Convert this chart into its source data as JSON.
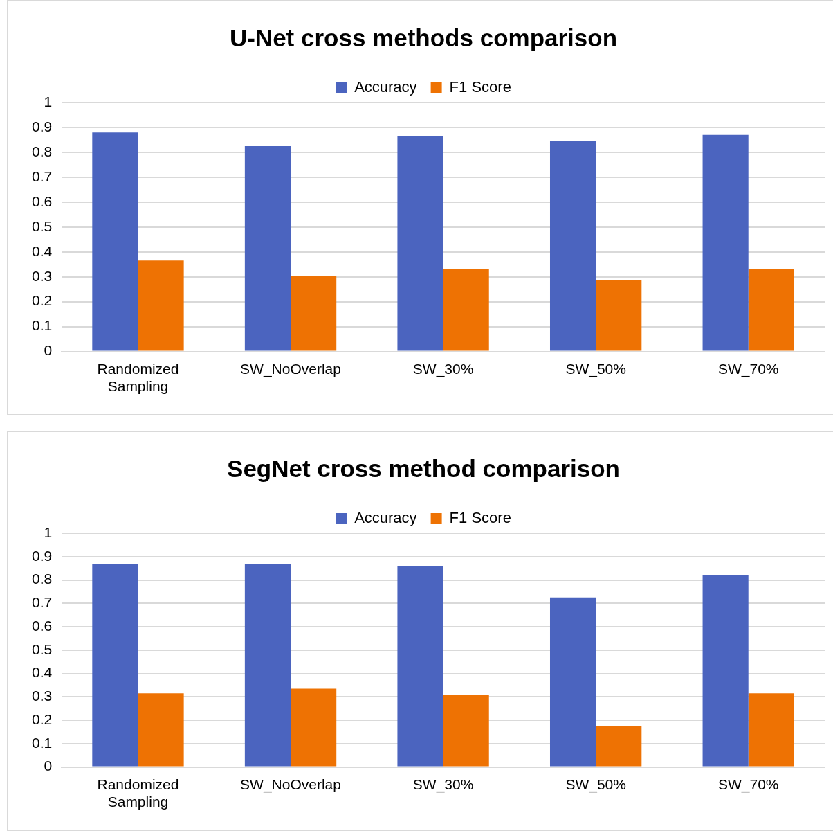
{
  "chart_data": [
    {
      "type": "bar",
      "title": "U-Net cross methods comparison",
      "categories": [
        "Randomized Sampling",
        "SW_NoOverlap",
        "SW_30%",
        "SW_50%",
        "SW_70%"
      ],
      "series": [
        {
          "name": "Accuracy",
          "color": "#4b64bf",
          "values": [
            0.88,
            0.825,
            0.865,
            0.845,
            0.87
          ]
        },
        {
          "name": "F1 Score",
          "color": "#ee7203",
          "values": [
            0.365,
            0.305,
            0.33,
            0.285,
            0.33
          ]
        }
      ],
      "ylim": [
        0,
        1
      ],
      "yticks": [
        0,
        0.1,
        0.2,
        0.3,
        0.4,
        0.5,
        0.6,
        0.7,
        0.8,
        0.9,
        1
      ],
      "grid": "y",
      "legend": "top"
    },
    {
      "type": "bar",
      "title": "SegNet cross method comparison",
      "categories": [
        "Randomized Sampling",
        "SW_NoOverlap",
        "SW_30%",
        "SW_50%",
        "SW_70%"
      ],
      "series": [
        {
          "name": "Accuracy",
          "color": "#4b64bf",
          "values": [
            0.87,
            0.87,
            0.86,
            0.725,
            0.82
          ]
        },
        {
          "name": "F1 Score",
          "color": "#ee7203",
          "values": [
            0.315,
            0.335,
            0.31,
            0.175,
            0.315
          ]
        }
      ],
      "ylim": [
        0,
        1
      ],
      "yticks": [
        0,
        0.1,
        0.2,
        0.3,
        0.4,
        0.5,
        0.6,
        0.7,
        0.8,
        0.9,
        1
      ],
      "grid": "y",
      "legend": "top"
    }
  ]
}
